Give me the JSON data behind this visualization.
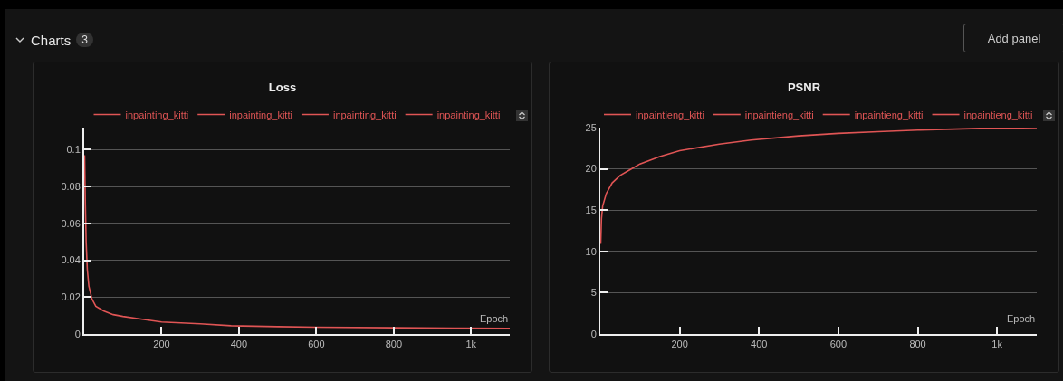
{
  "chart_data": [
    {
      "type": "other",
      "title": "Charts",
      "annotations": [
        "3",
        "Add panel"
      ]
    },
    {
      "type": "line",
      "title": "Loss",
      "xlabel": "Epoch",
      "x": [
        1,
        3,
        5,
        8,
        12,
        20,
        30,
        50,
        75,
        100,
        150,
        200,
        300,
        380,
        500,
        600,
        800,
        956,
        1100
      ],
      "series": [
        {
          "name": "inpainting_kitti",
          "color": "#e05555",
          "values": [
            0.097,
            0.07,
            0.05,
            0.035,
            0.026,
            0.019,
            0.015,
            0.0125,
            0.0105,
            0.0095,
            0.008,
            0.0065,
            0.0055,
            0.0045,
            0.004,
            0.0037,
            0.0034,
            0.0032,
            0.003
          ]
        },
        {
          "name": "inpainting_kitti",
          "color": "#e05555",
          "values": [
            null,
            null,
            null,
            null,
            null,
            null,
            null,
            null,
            null,
            null,
            null,
            null,
            null,
            null,
            null,
            null,
            null,
            null,
            null
          ]
        },
        {
          "name": "inpainting_kitti",
          "color": "#e05555",
          "values": [
            null,
            null,
            null,
            null,
            null,
            null,
            null,
            null,
            null,
            null,
            null,
            null,
            null,
            null,
            null,
            null,
            null,
            null,
            null
          ]
        },
        {
          "name": "inpainting_kitti",
          "color": "#e05555",
          "values": [
            null,
            null,
            null,
            null,
            null,
            null,
            null,
            null,
            null,
            null,
            null,
            null,
            null,
            null,
            null,
            null,
            null,
            null,
            null
          ]
        }
      ],
      "xlim": [
        0,
        1100
      ],
      "xticks": [
        200,
        400,
        600,
        800,
        {
          "value": 1000,
          "label": "1k"
        }
      ],
      "ylim": [
        0,
        0.112
      ],
      "yticks": [
        0,
        0.02,
        0.04,
        0.06,
        0.08,
        0.1
      ],
      "grid": "y",
      "legend": "top",
      "marker": "none",
      "line_style": "solid"
    },
    {
      "type": "line",
      "title": "PSNR",
      "xlabel": "Epoch",
      "x": [
        1,
        3,
        6,
        15,
        30,
        50,
        75,
        100,
        150,
        200,
        300,
        380,
        500,
        600,
        700,
        800,
        956,
        1100
      ],
      "series": [
        {
          "name": "inpaintieng_kitti",
          "color": "#e05555",
          "values": [
            10.9,
            14,
            15.5,
            17,
            18.3,
            19.2,
            19.9,
            20.6,
            21.5,
            22.2,
            23,
            23.5,
            24,
            24.3,
            24.5,
            24.7,
            24.9,
            25
          ]
        },
        {
          "name": "inpaintieng_kitti",
          "color": "#e05555",
          "values": [
            null,
            null,
            null,
            null,
            null,
            null,
            null,
            null,
            null,
            null,
            null,
            null,
            null,
            null,
            null,
            null,
            null,
            null
          ]
        },
        {
          "name": "inpaintieng_kitti",
          "color": "#e05555",
          "values": [
            null,
            null,
            null,
            null,
            null,
            null,
            null,
            null,
            null,
            null,
            null,
            null,
            null,
            null,
            null,
            null,
            null,
            null
          ]
        },
        {
          "name": "inpaintieng_kitti",
          "color": "#e05555",
          "values": [
            null,
            null,
            null,
            null,
            null,
            null,
            null,
            null,
            null,
            null,
            null,
            null,
            null,
            null,
            null,
            null,
            null,
            null
          ]
        }
      ],
      "xlim": [
        0,
        1100
      ],
      "xticks": [
        200,
        400,
        600,
        800,
        {
          "value": 1000,
          "label": "1k"
        }
      ],
      "ylim": [
        0,
        25
      ],
      "yticks": [
        0,
        5,
        10,
        15,
        20,
        25
      ],
      "grid": "y",
      "legend": "top",
      "marker": "none",
      "line_style": "solid"
    }
  ]
}
